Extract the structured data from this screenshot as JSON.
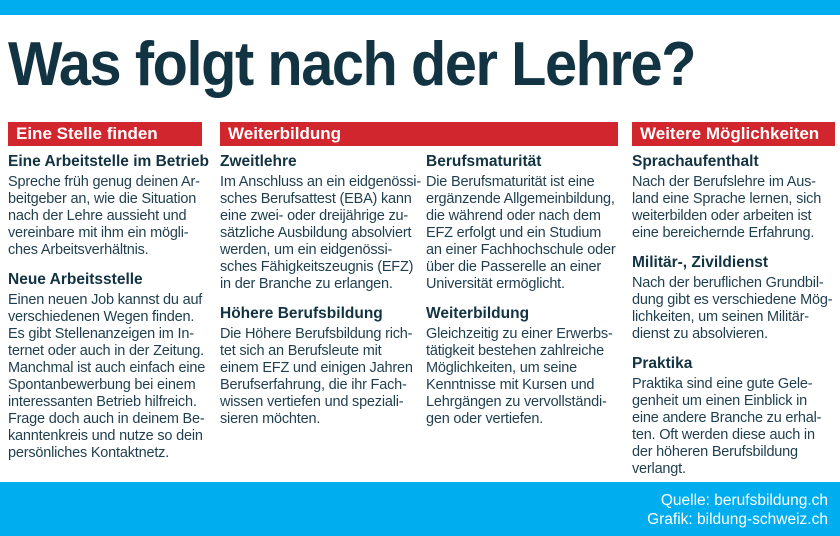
{
  "page": {
    "title": "Was folgt nach der Lehre?",
    "footer": {
      "source": "Quelle: berufsbildung.ch",
      "graphic": "Grafik: bildung-schweiz.ch"
    }
  },
  "colors": {
    "accent_red": "#d2262f",
    "accent_cyan": "#00aeef",
    "ink": "#123341",
    "body_text": "#1f3e4e"
  },
  "columns": [
    {
      "header": "Eine Stelle finden",
      "sections": [
        {
          "heading": "Eine Arbeitstelle im Betrieb",
          "body": "Spreche früh genug deinen Ar-\nbeitgeber an, wie die Situation\nnach der Lehre aussieht und\nvereinbare mit ihm ein mögli-\nches Arbeitsverhältnis."
        },
        {
          "heading": "Neue Arbeitsstelle",
          "body": "Einen neuen Job kannst du auf\nverschiedenen Wegen finden.\nEs gibt Stellenanzeigen im In-\nternet oder auch in der Zeitung.\nManchmal ist auch einfach eine\nSpontanbewerbung bei einem\ninteressanten Betrieb hilfreich.\nFrage doch auch in deinem Be-\nkanntenkreis und nutze so dein\npersönliches Kontaktnetz."
        }
      ]
    },
    {
      "header": "Weiterbildung",
      "subcolumns": [
        [
          {
            "heading": "Zweitlehre",
            "body": "Im Anschluss an ein eidgenössi-\nsches Berufsattest (EBA) kann\neine zwei- oder dreijährige zu-\nsätzliche Ausbildung absolviert\nwerden, um ein eidgenössi-\nsches Fähigkeitszeugnis (EFZ)\nin der Branche zu erlangen."
          },
          {
            "heading": "Höhere Berufsbildung",
            "body": "Die Höhere Berufsbildung rich-\ntet sich an Berufsleute mit\neinem EFZ und einigen Jahren\nBerufserfahrung, die ihr Fach-\nwissen vertiefen und speziali-\nsieren möchten."
          }
        ],
        [
          {
            "heading": "Berufsmaturität",
            "body": "Die Berufsmaturität ist eine\nergänzende Allgemeinbildung,\ndie während oder nach dem\nEFZ erfolgt und ein Studium\nan einer Fachhochschule oder\nüber die Passerelle an einer\nUniversität ermöglicht."
          },
          {
            "heading": "Weiterbildung",
            "body": "Gleichzeitig zu einer Erwerbs-\ntätigkeit bestehen zahlreiche\nMöglichkeiten, um seine\nKenntnisse mit Kursen und\nLehrgängen zu vervollständi-\ngen oder vertiefen."
          }
        ]
      ]
    },
    {
      "header": "Weitere Möglichkeiten",
      "sections": [
        {
          "heading": "Sprachaufenthalt",
          "body": "Nach der Berufslehre im Aus-\nland eine Sprache lernen, sich\nweiterbilden oder arbeiten ist\neine bereichernde Erfahrung."
        },
        {
          "heading": "Militär-, Zivildienst",
          "body": "Nach der beruflichen Grundbil-\ndung gibt es verschiedene Mög-\nlichkeiten, um seinen Militär-\ndienst zu absolvieren."
        },
        {
          "heading": "Praktika",
          "body": "Praktika sind eine gute Gele-\ngenheit um einen Einblick in\neine andere Branche zu erhal-\nten. Oft werden diese auch in\nder höheren Berufsbildung\nverlangt."
        }
      ]
    }
  ]
}
